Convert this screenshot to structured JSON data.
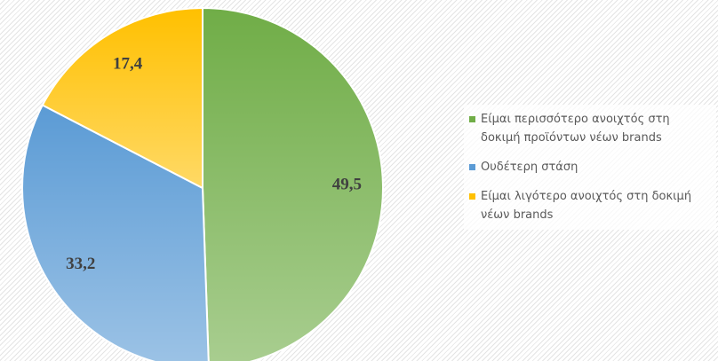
{
  "chart_data": {
    "type": "pie",
    "categories": [
      "Είμαι περισσότερο ανοιχτός στη δοκιμή προϊόντων νέων brands",
      "Ουδέτερη στάση",
      "Είμαι λιγότερο ανοιχτός στη δοκιμή νέων brands"
    ],
    "values": [
      49.5,
      33.2,
      17.4
    ],
    "value_labels": [
      "49,5",
      "33,2",
      "17,4"
    ],
    "colors": [
      "#70ad47",
      "#5b9bd5",
      "#ffc000"
    ],
    "legend": "right"
  }
}
